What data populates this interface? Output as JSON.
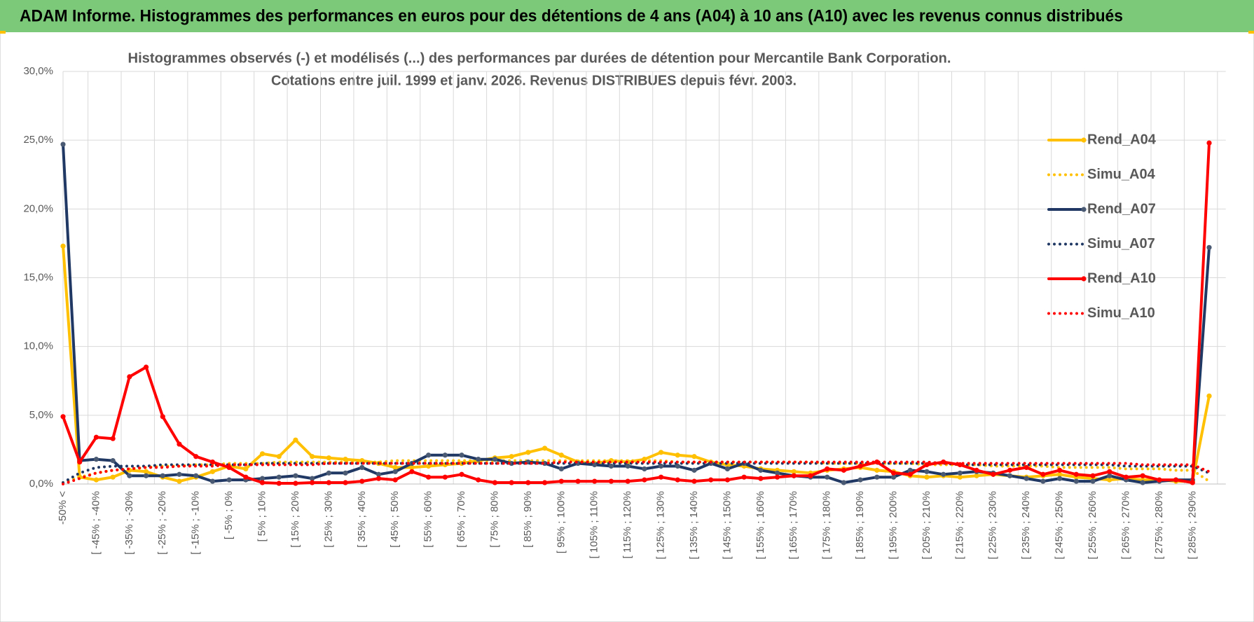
{
  "chart_data": {
    "type": "line",
    "title": "ADAM Informe. Histogrammes des performances en euros pour des détentions de 4 ans (A04) à 10 ans (A10) avec les revenus connus distribués",
    "subtitle": [
      "Histogrammes observés (-) et modélisés (...) des performances par durées de détention pour Mercantile Bank Corporation.",
      "Cotations entre juil. 1999 et janv. 2026. Revenus DISTRIBUES depuis févr. 2003."
    ],
    "categories": [
      "-50% <",
      null,
      "[ -45% ; -40%",
      null,
      "[ -35% ; -30%",
      null,
      "[ -25% ; -20%",
      null,
      "[ -15% ; -10%",
      null,
      "[ -5% ; 0%",
      null,
      "[ 5% ; 10%",
      null,
      "[ 15% ; 20%",
      null,
      "[ 25% ; 30%",
      null,
      "[ 35% ; 40%",
      null,
      "[ 45% ; 50%",
      null,
      "[ 55% ; 60%",
      null,
      "[ 65% ; 70%",
      null,
      "[ 75% ; 80%",
      null,
      "[ 85% ; 90%",
      null,
      "[ 95% ; 100%",
      null,
      "[ 105% ; 110%",
      null,
      "[ 115% ; 120%",
      null,
      "[ 125% ; 130%",
      null,
      "[ 135% ; 140%",
      null,
      "[ 145% ; 150%",
      null,
      "[ 155% ; 160%",
      null,
      "[ 165% ; 170%",
      null,
      "[ 175% ; 180%",
      null,
      "[ 185% ; 190%",
      null,
      "[ 195% ; 200%",
      null,
      "[ 205% ; 210%",
      null,
      "[ 215% ; 220%",
      null,
      "[ 225% ; 230%",
      null,
      "[ 235% ; 240%",
      null,
      "[ 245% ; 250%",
      null,
      "[ 255% ; 260%",
      null,
      "[ 265% ; 270%",
      null,
      "[ 275% ; 280%",
      null,
      "[ 285% ; 290%",
      null
    ],
    "series": [
      {
        "name": "Rend_A04",
        "color": "#FFC000",
        "style": "solid",
        "values": [
          17.3,
          0.5,
          0.3,
          0.5,
          1.0,
          0.9,
          0.5,
          0.2,
          0.5,
          0.9,
          1.3,
          1.1,
          2.2,
          2.0,
          3.2,
          2.0,
          1.9,
          1.8,
          1.7,
          1.5,
          1.2,
          1.2,
          1.3,
          1.4,
          1.5,
          1.7,
          1.9,
          2.0,
          2.3,
          2.6,
          2.1,
          1.6,
          1.5,
          1.7,
          1.6,
          1.8,
          2.3,
          2.1,
          2.0,
          1.6,
          1.4,
          1.3,
          1.1,
          1.0,
          0.9,
          0.8,
          1.0,
          1.1,
          1.2,
          1.0,
          0.9,
          0.6,
          0.5,
          0.6,
          0.5,
          0.6,
          0.7,
          0.6,
          0.5,
          0.6,
          0.7,
          0.5,
          0.4,
          0.3,
          0.4,
          0.3,
          0.3,
          0.2,
          0.2,
          6.4
        ]
      },
      {
        "name": "Simu_A04",
        "color": "#FFC000",
        "style": "dotted",
        "values": [
          0.1,
          0.5,
          0.8,
          1.0,
          1.1,
          1.2,
          1.3,
          1.3,
          1.4,
          1.4,
          1.5,
          1.5,
          1.5,
          1.6,
          1.6,
          1.6,
          1.6,
          1.6,
          1.6,
          1.6,
          1.7,
          1.7,
          1.7,
          1.7,
          1.7,
          1.7,
          1.7,
          1.7,
          1.7,
          1.7,
          1.7,
          1.7,
          1.7,
          1.7,
          1.7,
          1.7,
          1.7,
          1.6,
          1.6,
          1.6,
          1.6,
          1.6,
          1.6,
          1.6,
          1.6,
          1.6,
          1.5,
          1.5,
          1.5,
          1.5,
          1.5,
          1.5,
          1.4,
          1.4,
          1.4,
          1.4,
          1.3,
          1.3,
          1.3,
          1.3,
          1.2,
          1.2,
          1.2,
          1.2,
          1.1,
          1.1,
          1.1,
          1.0,
          1.0,
          0.2
        ]
      },
      {
        "name": "Rend_A07",
        "color": "#1F3864",
        "style": "solid",
        "values": [
          24.7,
          1.7,
          1.8,
          1.7,
          0.6,
          0.6,
          0.6,
          0.7,
          0.6,
          0.2,
          0.3,
          0.3,
          0.4,
          0.5,
          0.6,
          0.4,
          0.8,
          0.8,
          1.2,
          0.7,
          0.9,
          1.5,
          2.1,
          2.1,
          2.1,
          1.8,
          1.8,
          1.5,
          1.6,
          1.5,
          1.1,
          1.5,
          1.4,
          1.3,
          1.3,
          1.1,
          1.3,
          1.3,
          1.0,
          1.5,
          1.1,
          1.5,
          1.0,
          0.8,
          0.6,
          0.5,
          0.5,
          0.1,
          0.3,
          0.5,
          0.5,
          1.0,
          0.9,
          0.7,
          0.8,
          0.9,
          0.8,
          0.6,
          0.4,
          0.2,
          0.4,
          0.2,
          0.2,
          0.6,
          0.3,
          0.1,
          0.2,
          0.3,
          0.3,
          17.2
        ]
      },
      {
        "name": "Simu_A07",
        "color": "#1F3864",
        "style": "dotted",
        "values": [
          0.1,
          0.8,
          1.2,
          1.3,
          1.3,
          1.3,
          1.4,
          1.4,
          1.4,
          1.4,
          1.4,
          1.4,
          1.5,
          1.5,
          1.5,
          1.5,
          1.5,
          1.5,
          1.5,
          1.5,
          1.5,
          1.5,
          1.5,
          1.5,
          1.5,
          1.5,
          1.5,
          1.5,
          1.5,
          1.5,
          1.5,
          1.5,
          1.5,
          1.5,
          1.5,
          1.5,
          1.5,
          1.5,
          1.5,
          1.5,
          1.5,
          1.5,
          1.5,
          1.5,
          1.5,
          1.5,
          1.5,
          1.5,
          1.5,
          1.5,
          1.5,
          1.5,
          1.5,
          1.5,
          1.4,
          1.4,
          1.4,
          1.4,
          1.4,
          1.4,
          1.4,
          1.4,
          1.4,
          1.4,
          1.3,
          1.3,
          1.3,
          1.3,
          1.3,
          0.8
        ]
      },
      {
        "name": "Rend_A10",
        "color": "#FF0000",
        "style": "solid",
        "values": [
          4.9,
          1.6,
          3.4,
          3.3,
          7.8,
          8.5,
          4.9,
          2.9,
          2.0,
          1.6,
          1.2,
          0.5,
          0.1,
          0.05,
          0.05,
          0.1,
          0.1,
          0.1,
          0.2,
          0.4,
          0.3,
          0.9,
          0.5,
          0.5,
          0.7,
          0.3,
          0.1,
          0.1,
          0.1,
          0.1,
          0.2,
          0.2,
          0.2,
          0.2,
          0.2,
          0.3,
          0.5,
          0.3,
          0.2,
          0.3,
          0.3,
          0.5,
          0.4,
          0.5,
          0.6,
          0.6,
          1.1,
          1.0,
          1.3,
          1.6,
          0.8,
          0.7,
          1.4,
          1.6,
          1.4,
          1.0,
          0.7,
          1.0,
          1.2,
          0.7,
          1.0,
          0.7,
          0.6,
          0.9,
          0.5,
          0.6,
          0.3,
          0.3,
          0.1,
          24.8
        ]
      },
      {
        "name": "Simu_A10",
        "color": "#FF0000",
        "style": "dotted",
        "values": [
          0.0,
          0.4,
          0.8,
          1.0,
          1.1,
          1.2,
          1.2,
          1.3,
          1.3,
          1.3,
          1.4,
          1.4,
          1.4,
          1.4,
          1.4,
          1.4,
          1.5,
          1.5,
          1.5,
          1.5,
          1.5,
          1.5,
          1.5,
          1.5,
          1.5,
          1.5,
          1.5,
          1.5,
          1.5,
          1.5,
          1.6,
          1.6,
          1.6,
          1.6,
          1.6,
          1.6,
          1.6,
          1.6,
          1.6,
          1.6,
          1.6,
          1.6,
          1.6,
          1.6,
          1.6,
          1.6,
          1.6,
          1.6,
          1.6,
          1.6,
          1.6,
          1.6,
          1.6,
          1.5,
          1.5,
          1.5,
          1.5,
          1.5,
          1.5,
          1.5,
          1.5,
          1.5,
          1.5,
          1.5,
          1.5,
          1.4,
          1.4,
          1.4,
          1.4,
          0.9
        ]
      }
    ],
    "ylim": [
      0,
      30
    ],
    "yticks": [
      {
        "value": 0,
        "label": "0,0%"
      },
      {
        "value": 5,
        "label": "5,0%"
      },
      {
        "value": 10,
        "label": "10,0%"
      },
      {
        "value": 15,
        "label": "15,0%"
      },
      {
        "value": 20,
        "label": "20,0%"
      },
      {
        "value": 25,
        "label": "25,0%"
      },
      {
        "value": 30,
        "label": "30,0%"
      }
    ],
    "grid": true,
    "legend": "right"
  }
}
